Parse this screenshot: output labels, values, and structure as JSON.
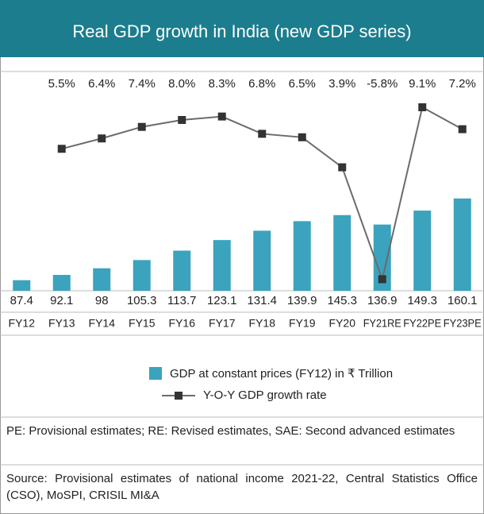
{
  "chart_data": {
    "type": "bar",
    "title": "Real GDP growth in India (new GDP series)",
    "categories": [
      "FY12",
      "FY13",
      "FY14",
      "FY15",
      "FY16",
      "FY17",
      "FY18",
      "FY19",
      "FY20",
      "FY21RE",
      "FY22PE",
      "FY23PE"
    ],
    "ylim": [
      78,
      273
    ],
    "y2lim": [
      -6.8,
      12.2
    ],
    "series": [
      {
        "name": "GDP at constant prices (FY12) in ₹ Trillion",
        "type": "bar",
        "color": "#3ba3bd",
        "values": [
          87.4,
          92.1,
          98,
          105.3,
          113.7,
          123.1,
          131.4,
          139.9,
          145.3,
          136.9,
          149.3,
          160.1
        ]
      },
      {
        "name": "Y-O-Y GDP growth rate",
        "type": "line",
        "axis": "y2",
        "color": "#6b6b6b",
        "marker_color": "#333333",
        "values": [
          null,
          5.5,
          6.4,
          7.4,
          8.0,
          8.3,
          6.8,
          6.5,
          3.9,
          -5.8,
          9.1,
          7.2
        ],
        "value_labels": [
          null,
          "5.5%",
          "6.4%",
          "7.4%",
          "8.0%",
          "8.3%",
          "6.8%",
          "6.5%",
          "3.9%",
          "-5.8%",
          "9.1%",
          "7.2%"
        ]
      }
    ],
    "note": "PE: Provisional estimates; RE: Revised estimates, SAE: Second advanced estimates",
    "source": "Source: Provisional estimates of national income 2021-22, Central Statistics Office (CSO), MoSPI, CRISIL MI&A"
  }
}
